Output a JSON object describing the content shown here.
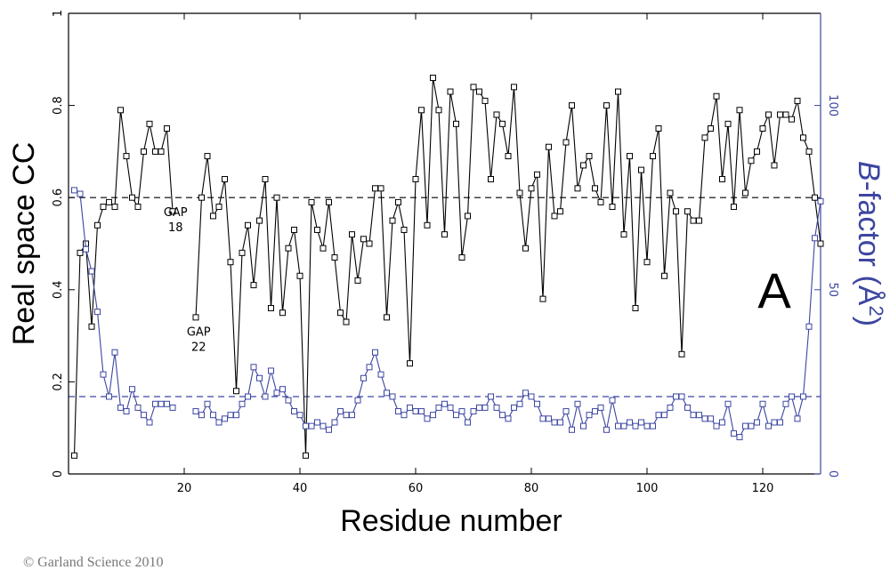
{
  "chart_data": {
    "type": "line",
    "panel_label": "A",
    "xlabel": "Residue number",
    "ylabel_left": "Real space CC",
    "ylabel_right_italic": "B",
    "ylabel_right_rest": "-factor (Å",
    "ylabel_right_sup": "2",
    "ylabel_right_close": ")",
    "xlim": [
      0,
      130
    ],
    "ylim_left": [
      0,
      1
    ],
    "ylim_right": [
      0,
      125
    ],
    "x_ticks": [
      20,
      40,
      60,
      80,
      100,
      120
    ],
    "y_ticks_left": [
      0,
      0.2,
      0.4,
      0.6,
      0.8,
      1
    ],
    "y_tick_labels_left": [
      "0",
      "0.2",
      "0.4",
      "0.6",
      "0.8",
      "1"
    ],
    "y_ticks_right": [
      0,
      50,
      100
    ],
    "threshold_left": 0.6,
    "threshold_right": 21,
    "annotations": [
      {
        "id": "gap18",
        "line1": "GAP",
        "line2": "18",
        "x": 18.5,
        "y": 0.56
      },
      {
        "id": "gap22",
        "line1": "GAP",
        "line2": "22",
        "x": 22.5,
        "y": 0.3
      }
    ],
    "colors": {
      "cc": "#000000",
      "bfactor": "#3c46a0",
      "right_axis": "#3c46a0"
    },
    "series": [
      {
        "name": "Real space CC",
        "axis": "left",
        "segments": [
          [
            [
              1,
              0.04
            ],
            [
              2,
              0.48
            ],
            [
              3,
              0.5
            ],
            [
              4,
              0.32
            ],
            [
              5,
              0.54
            ],
            [
              6,
              0.58
            ],
            [
              7,
              0.59
            ],
            [
              8,
              0.58
            ],
            [
              9,
              0.79
            ],
            [
              10,
              0.69
            ],
            [
              11,
              0.6
            ],
            [
              12,
              0.58
            ],
            [
              13,
              0.7
            ],
            [
              14,
              0.76
            ],
            [
              15,
              0.7
            ],
            [
              16,
              0.7
            ],
            [
              17,
              0.75
            ],
            [
              18,
              0.57
            ]
          ],
          [
            [
              22,
              0.34
            ],
            [
              23,
              0.6
            ],
            [
              24,
              0.69
            ],
            [
              25,
              0.56
            ],
            [
              26,
              0.58
            ],
            [
              27,
              0.64
            ],
            [
              28,
              0.46
            ],
            [
              29,
              0.18
            ],
            [
              30,
              0.48
            ],
            [
              31,
              0.54
            ],
            [
              32,
              0.41
            ],
            [
              33,
              0.55
            ],
            [
              34,
              0.64
            ],
            [
              35,
              0.36
            ],
            [
              36,
              0.6
            ],
            [
              37,
              0.35
            ],
            [
              38,
              0.49
            ],
            [
              39,
              0.53
            ],
            [
              40,
              0.43
            ],
            [
              41,
              0.04
            ],
            [
              42,
              0.59
            ],
            [
              43,
              0.53
            ],
            [
              44,
              0.49
            ],
            [
              45,
              0.59
            ],
            [
              46,
              0.47
            ],
            [
              47,
              0.35
            ],
            [
              48,
              0.33
            ],
            [
              49,
              0.52
            ],
            [
              50,
              0.42
            ],
            [
              51,
              0.51
            ],
            [
              52,
              0.5
            ],
            [
              53,
              0.62
            ],
            [
              54,
              0.62
            ],
            [
              55,
              0.34
            ],
            [
              56,
              0.55
            ],
            [
              57,
              0.59
            ],
            [
              58,
              0.53
            ],
            [
              59,
              0.24
            ],
            [
              60,
              0.64
            ],
            [
              61,
              0.79
            ],
            [
              62,
              0.54
            ],
            [
              63,
              0.86
            ],
            [
              64,
              0.79
            ],
            [
              65,
              0.52
            ],
            [
              66,
              0.83
            ],
            [
              67,
              0.76
            ],
            [
              68,
              0.47
            ],
            [
              69,
              0.56
            ],
            [
              70,
              0.84
            ],
            [
              71,
              0.83
            ],
            [
              72,
              0.81
            ],
            [
              73,
              0.64
            ],
            [
              74,
              0.78
            ],
            [
              75,
              0.76
            ],
            [
              76,
              0.69
            ],
            [
              77,
              0.84
            ],
            [
              78,
              0.61
            ],
            [
              79,
              0.49
            ],
            [
              80,
              0.62
            ],
            [
              81,
              0.65
            ],
            [
              82,
              0.38
            ],
            [
              83,
              0.71
            ],
            [
              84,
              0.56
            ],
            [
              85,
              0.57
            ],
            [
              86,
              0.72
            ],
            [
              87,
              0.8
            ],
            [
              88,
              0.62
            ],
            [
              89,
              0.67
            ],
            [
              90,
              0.69
            ],
            [
              91,
              0.62
            ],
            [
              92,
              0.59
            ],
            [
              93,
              0.8
            ],
            [
              94,
              0.58
            ],
            [
              95,
              0.83
            ],
            [
              96,
              0.52
            ],
            [
              97,
              0.69
            ],
            [
              98,
              0.36
            ],
            [
              99,
              0.66
            ],
            [
              100,
              0.46
            ],
            [
              101,
              0.69
            ],
            [
              102,
              0.75
            ],
            [
              103,
              0.43
            ],
            [
              104,
              0.61
            ],
            [
              105,
              0.57
            ],
            [
              106,
              0.26
            ],
            [
              107,
              0.57
            ],
            [
              108,
              0.55
            ],
            [
              109,
              0.55
            ],
            [
              110,
              0.73
            ],
            [
              111,
              0.75
            ],
            [
              112,
              0.82
            ],
            [
              113,
              0.64
            ],
            [
              114,
              0.76
            ],
            [
              115,
              0.58
            ],
            [
              116,
              0.79
            ],
            [
              117,
              0.61
            ],
            [
              118,
              0.68
            ],
            [
              119,
              0.7
            ],
            [
              120,
              0.75
            ],
            [
              121,
              0.78
            ],
            [
              122,
              0.67
            ],
            [
              123,
              0.78
            ],
            [
              124,
              0.78
            ],
            [
              125,
              0.77
            ],
            [
              126,
              0.81
            ],
            [
              127,
              0.73
            ],
            [
              128,
              0.7
            ],
            [
              129,
              0.6
            ],
            [
              130,
              0.5
            ]
          ]
        ]
      },
      {
        "name": "B-factor",
        "axis": "right",
        "segments": [
          [
            [
              1,
              77
            ],
            [
              2,
              76
            ],
            [
              3,
              61
            ],
            [
              4,
              55
            ],
            [
              5,
              44
            ],
            [
              6,
              27
            ],
            [
              7,
              21
            ],
            [
              8,
              33
            ],
            [
              9,
              18
            ],
            [
              10,
              17
            ],
            [
              11,
              23
            ],
            [
              12,
              18
            ],
            [
              13,
              16
            ],
            [
              14,
              14
            ],
            [
              15,
              19
            ],
            [
              16,
              19
            ],
            [
              17,
              19
            ],
            [
              18,
              18
            ]
          ],
          [
            [
              22,
              17
            ],
            [
              23,
              16
            ],
            [
              24,
              19
            ],
            [
              25,
              16
            ],
            [
              26,
              14
            ],
            [
              27,
              15
            ],
            [
              28,
              16
            ],
            [
              29,
              16
            ],
            [
              30,
              19
            ],
            [
              31,
              21
            ],
            [
              32,
              29
            ],
            [
              33,
              26
            ],
            [
              34,
              21
            ],
            [
              35,
              28
            ],
            [
              36,
              22
            ],
            [
              37,
              23
            ],
            [
              38,
              20
            ],
            [
              39,
              17
            ],
            [
              40,
              16
            ],
            [
              41,
              13
            ],
            [
              42,
              13
            ],
            [
              43,
              14
            ],
            [
              44,
              13
            ],
            [
              45,
              12
            ],
            [
              46,
              14
            ],
            [
              47,
              17
            ],
            [
              48,
              16
            ],
            [
              49,
              16
            ],
            [
              50,
              20
            ],
            [
              51,
              26
            ],
            [
              52,
              29
            ],
            [
              53,
              33
            ],
            [
              54,
              27
            ],
            [
              55,
              22
            ],
            [
              56,
              21
            ],
            [
              57,
              17
            ],
            [
              58,
              16
            ],
            [
              59,
              18
            ],
            [
              60,
              17
            ],
            [
              61,
              17
            ],
            [
              62,
              15
            ],
            [
              63,
              16
            ],
            [
              64,
              18
            ],
            [
              65,
              19
            ],
            [
              66,
              18
            ],
            [
              67,
              16
            ],
            [
              68,
              17
            ],
            [
              69,
              14
            ],
            [
              70,
              17
            ],
            [
              71,
              18
            ],
            [
              72,
              18
            ],
            [
              73,
              21
            ],
            [
              74,
              18
            ],
            [
              75,
              16
            ],
            [
              76,
              15
            ],
            [
              77,
              18
            ],
            [
              78,
              19
            ],
            [
              79,
              22
            ],
            [
              80,
              21
            ],
            [
              81,
              19
            ],
            [
              82,
              15
            ],
            [
              83,
              15
            ],
            [
              84,
              14
            ],
            [
              85,
              14
            ],
            [
              86,
              17
            ],
            [
              87,
              12
            ],
            [
              88,
              19
            ],
            [
              89,
              13
            ],
            [
              90,
              16
            ],
            [
              91,
              17
            ],
            [
              92,
              18
            ],
            [
              93,
              12
            ],
            [
              94,
              20
            ],
            [
              95,
              13
            ],
            [
              96,
              13
            ],
            [
              97,
              14
            ],
            [
              98,
              13
            ],
            [
              99,
              14
            ],
            [
              100,
              13
            ],
            [
              101,
              13
            ],
            [
              102,
              16
            ],
            [
              103,
              16
            ],
            [
              104,
              18
            ],
            [
              105,
              21
            ],
            [
              106,
              21
            ],
            [
              107,
              18
            ],
            [
              108,
              16
            ],
            [
              109,
              16
            ],
            [
              110,
              15
            ],
            [
              111,
              15
            ],
            [
              112,
              13
            ],
            [
              113,
              14
            ],
            [
              114,
              19
            ],
            [
              115,
              11
            ],
            [
              116,
              10
            ],
            [
              117,
              13
            ],
            [
              118,
              13
            ],
            [
              119,
              14
            ],
            [
              120,
              19
            ],
            [
              121,
              13
            ],
            [
              122,
              14
            ],
            [
              123,
              14
            ],
            [
              124,
              19
            ],
            [
              125,
              21
            ],
            [
              126,
              15
            ],
            [
              127,
              21
            ],
            [
              128,
              40
            ],
            [
              129,
              64
            ],
            [
              130,
              74
            ]
          ]
        ]
      }
    ]
  },
  "footer": {
    "copyright": "© Garland Science 2010"
  }
}
